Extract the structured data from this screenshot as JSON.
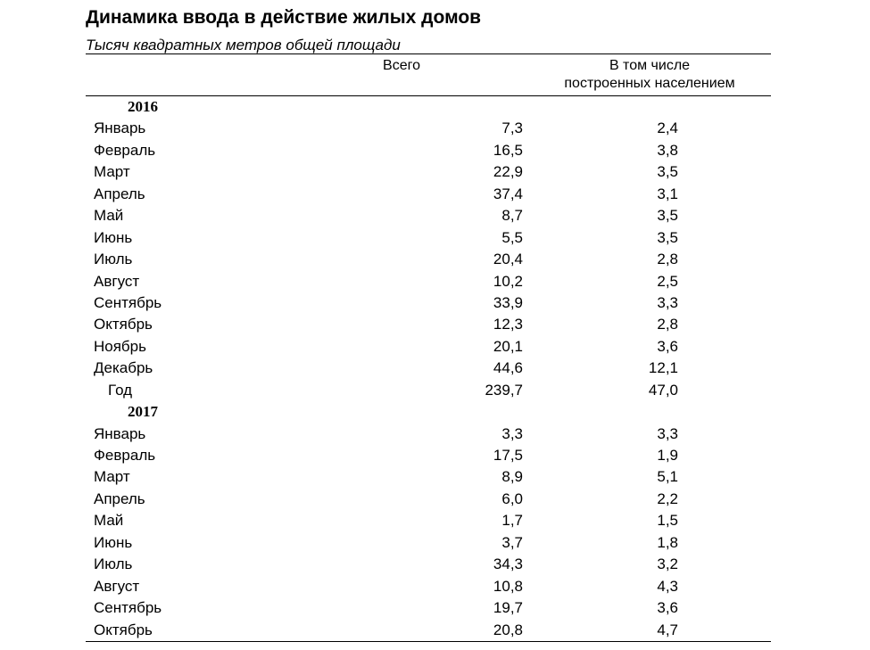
{
  "document": {
    "title": "Динамика ввода в действие жилых домов",
    "subtitle": "Тысяч квадратных метров общей площади",
    "columns": {
      "total": "Всего",
      "population_line1": "В том числе",
      "population_line2": "построенных населением"
    }
  },
  "table": {
    "sections": [
      {
        "year": "2016",
        "rows": [
          {
            "label": "Январь",
            "total": "7,3",
            "population": "2,4"
          },
          {
            "label": "Февраль",
            "total": "16,5",
            "population": "3,8"
          },
          {
            "label": "Март",
            "total": "22,9",
            "population": "3,5"
          },
          {
            "label": "Апрель",
            "total": "37,4",
            "population": "3,1"
          },
          {
            "label": "Май",
            "total": "8,7",
            "population": "3,5"
          },
          {
            "label": "Июнь",
            "total": "5,5",
            "population": "3,5"
          },
          {
            "label": "Июль",
            "total": "20,4",
            "population": "2,8"
          },
          {
            "label": "Август",
            "total": "10,2",
            "population": "2,5"
          },
          {
            "label": "Сентябрь",
            "total": "33,9",
            "population": "3,3"
          },
          {
            "label": "Октябрь",
            "total": "12,3",
            "population": "2,8"
          },
          {
            "label": "Ноябрь",
            "total": "20,1",
            "population": "3,6"
          },
          {
            "label": "Декабрь",
            "total": "44,6",
            "population": "12,1"
          },
          {
            "label": "Год",
            "total": "239,7",
            "population": "47,0",
            "is_total": true
          }
        ]
      },
      {
        "year": "2017",
        "rows": [
          {
            "label": "Январь",
            "total": "3,3",
            "population": "3,3"
          },
          {
            "label": "Февраль",
            "total": "17,5",
            "population": "1,9"
          },
          {
            "label": "Март",
            "total": "8,9",
            "population": "5,1"
          },
          {
            "label": "Апрель",
            "total": "6,0",
            "population": "2,2"
          },
          {
            "label": "Май",
            "total": "1,7",
            "population": "1,5"
          },
          {
            "label": "Июнь",
            "total": "3,7",
            "population": "1,8"
          },
          {
            "label": "Июль",
            "total": "34,3",
            "population": "3,2"
          },
          {
            "label": "Август",
            "total": "10,8",
            "population": "4,3"
          },
          {
            "label": "Сентябрь",
            "total": "19,7",
            "population": "3,6"
          },
          {
            "label": "Октябрь",
            "total": "20,8",
            "population": "4,7"
          }
        ]
      }
    ]
  }
}
